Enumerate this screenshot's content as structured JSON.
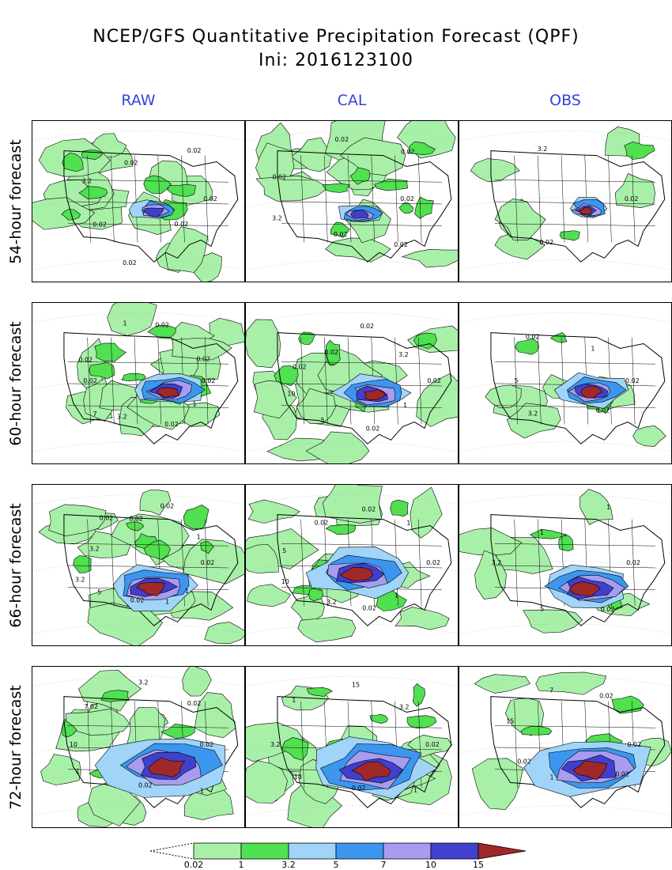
{
  "title": {
    "line1": "NCEP/GFS Quantitative Precipitation Forecast (QPF)",
    "line2": "Ini: 2016123100"
  },
  "columns": [
    "RAW",
    "CAL",
    "OBS"
  ],
  "rows": [
    "54-hour forecast",
    "60-hour forecast",
    "66-hour forecast",
    "72-hour forecast"
  ],
  "colors": {
    "column_header": "#3344dd",
    "levels": [
      "#a8f0a8",
      "#50e050",
      "#a0d4f8",
      "#3c96f0",
      "#a89cf0",
      "#4040cc",
      "#a02828"
    ]
  },
  "colorbar": {
    "labels": [
      "0.02",
      "1",
      "3.2",
      "5",
      "7",
      "10",
      "15"
    ]
  },
  "panels": [
    [
      {
        "labels": [
          "0.02",
          "0.02",
          "0.02",
          "0.02",
          "3.2",
          "0.02",
          "0.02"
        ]
      },
      {
        "labels": [
          "0.02",
          "0.02",
          "0.02",
          "3.2",
          "0.02",
          "0.02",
          "0.02"
        ]
      },
      {
        "labels": [
          "0.02",
          "0.02",
          "3.2"
        ]
      }
    ],
    [
      {
        "labels": [
          "0.02",
          "1",
          "0.02",
          "3.2",
          "7",
          "0.02",
          "0.02",
          "1",
          "0.02",
          "0.02"
        ]
      },
      {
        "labels": [
          "0.02",
          "1",
          "0.02",
          "5",
          "10",
          "0.02",
          "0.02",
          "0.02",
          "3.2"
        ]
      },
      {
        "labels": [
          "0.02",
          "0.02",
          "3.2",
          "5",
          "0.02",
          "1"
        ]
      }
    ],
    [
      {
        "labels": [
          "0.02",
          "1",
          "1",
          "0.02",
          "5",
          "3.2",
          "3.2",
          "0.02",
          "0.02",
          "0.02",
          "1"
        ]
      },
      {
        "labels": [
          "0.02",
          "1",
          "0.02",
          "3.2",
          "10",
          "5",
          "0.02",
          "0.02",
          "1"
        ]
      },
      {
        "labels": [
          "0.02",
          "0.02",
          "5",
          "3.2",
          "1",
          "1"
        ]
      }
    ],
    [
      {
        "labels": [
          "0.02",
          "1",
          "0.02",
          "1",
          "10",
          "7.02",
          "3.2",
          "0.02"
        ]
      },
      {
        "labels": [
          "0.02",
          "1",
          "0.02",
          "10",
          "3.2",
          "1",
          "15",
          "3.2"
        ]
      },
      {
        "labels": [
          "0.02",
          "0.02",
          "1",
          "0.02",
          "15",
          "7",
          "0.02"
        ]
      }
    ]
  ]
}
